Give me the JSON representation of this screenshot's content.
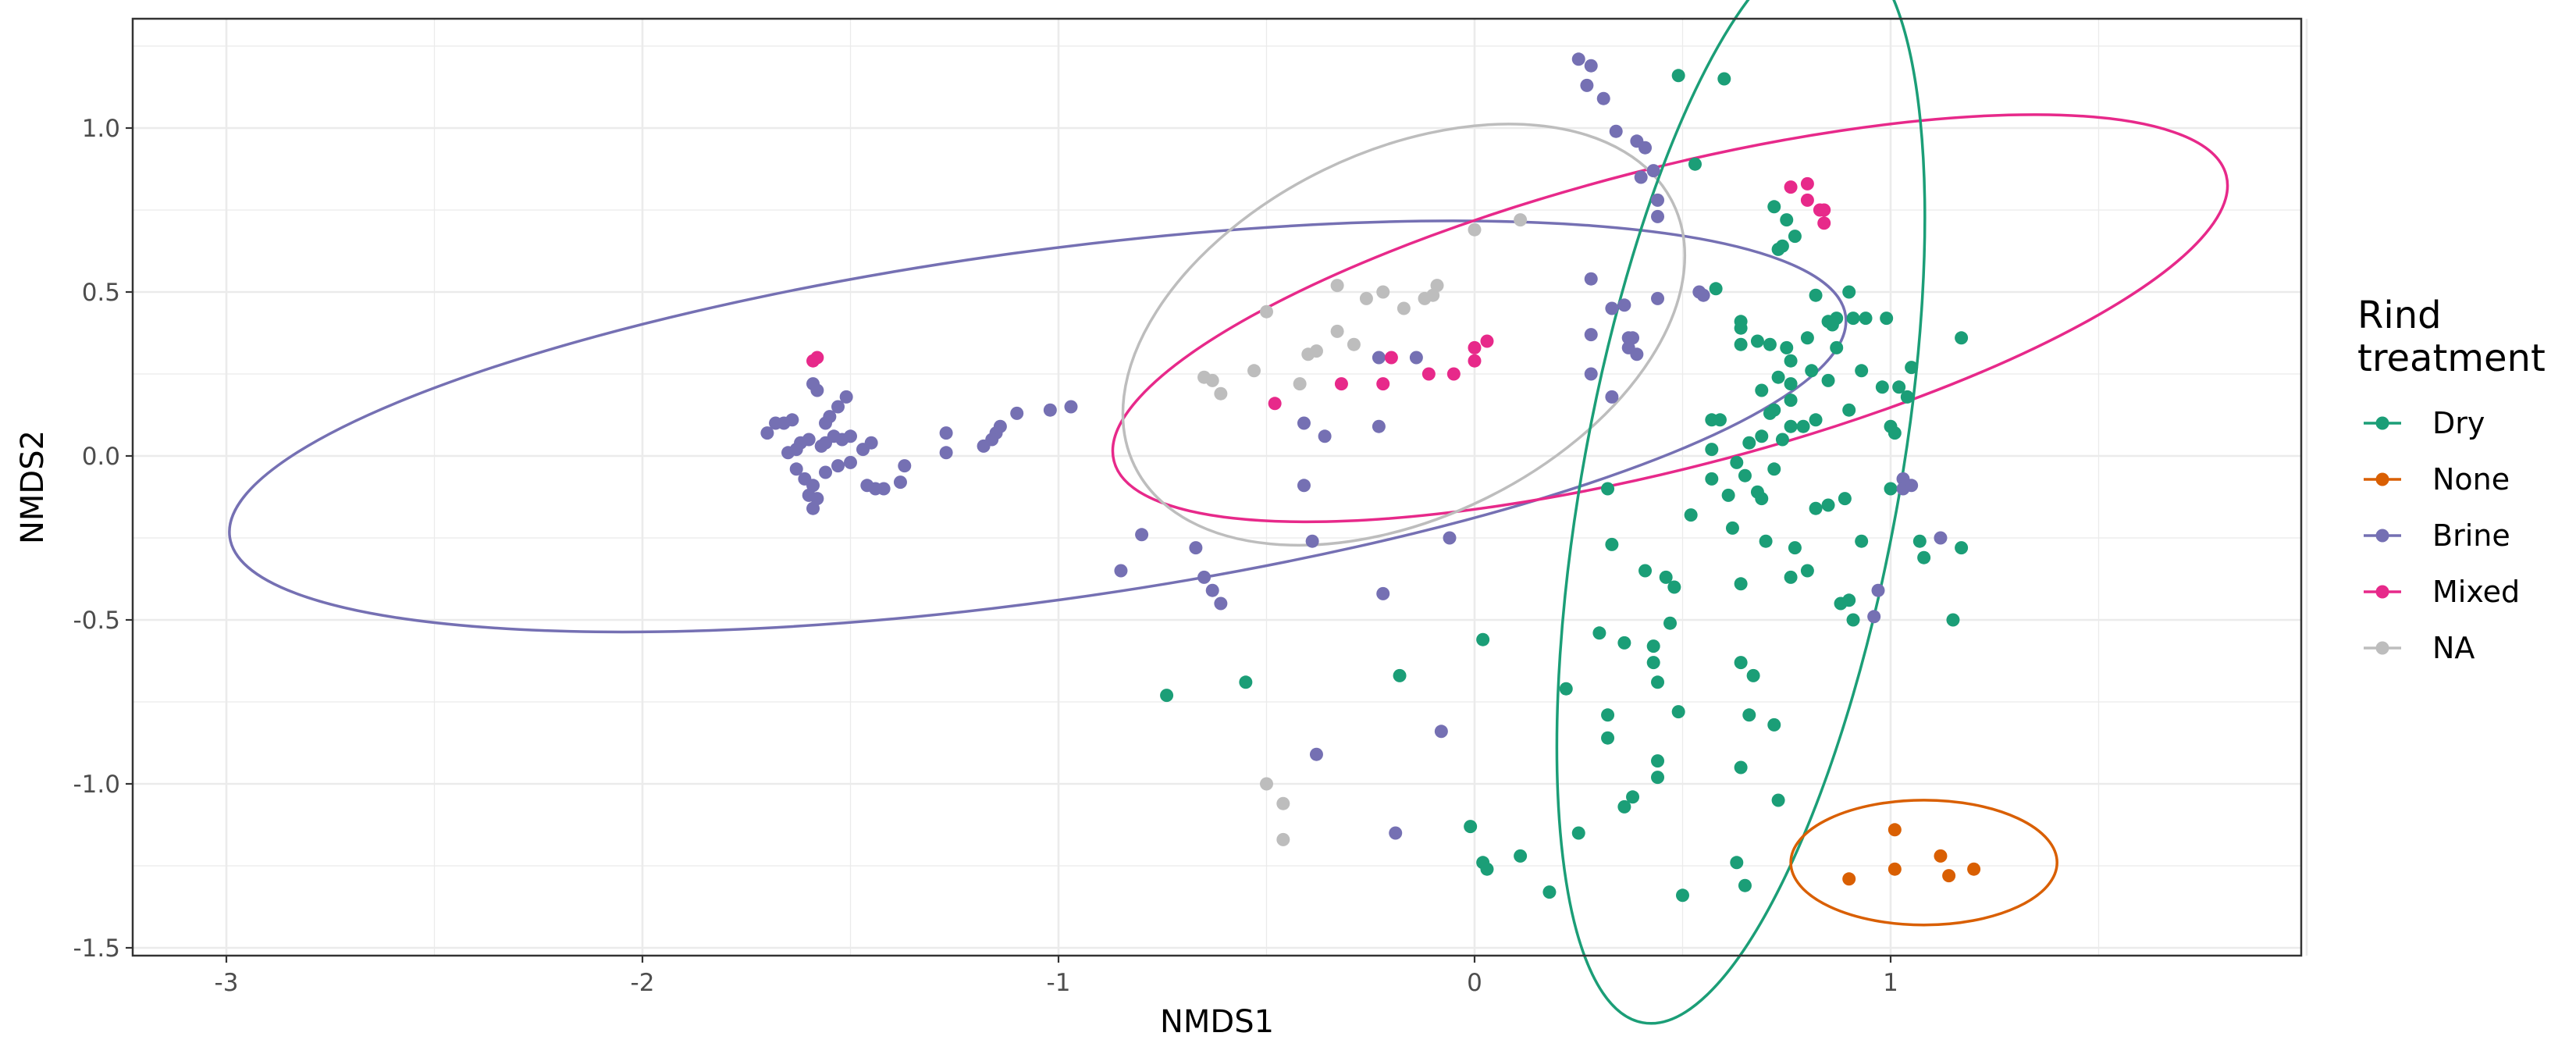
{
  "chart_data": {
    "type": "scatter",
    "title": "",
    "xlabel": "NMDS1",
    "ylabel": "NMDS2",
    "xlim": [
      -3.23,
      2.0
    ],
    "ylim": [
      -1.52,
      1.34
    ],
    "x_ticks": [
      -3,
      -2,
      -1,
      0,
      1
    ],
    "x_tick_labels": [
      "-3",
      "-2",
      "-1",
      "0",
      "1"
    ],
    "y_ticks": [
      -1.5,
      -1.0,
      -0.5,
      0.0,
      0.5,
      1.0
    ],
    "y_tick_labels": [
      "-1.5",
      "-1.0",
      "-0.5",
      "0.0",
      "0.5",
      "1.0"
    ],
    "grid": true,
    "legend": {
      "title_lines": [
        "Rind",
        "treatment"
      ],
      "placement": "right",
      "entries": [
        {
          "key": "dry",
          "label": "Dry"
        },
        {
          "key": "none",
          "label": "None"
        },
        {
          "key": "brine",
          "label": "Brine"
        },
        {
          "key": "mixed",
          "label": "Mixed"
        },
        {
          "key": "na",
          "label": "NA"
        }
      ]
    },
    "colors": {
      "dry": "#1b9e77",
      "none": "#d95f02",
      "brine": "#7570b3",
      "mixed": "#e7298a",
      "na": "#bdbdbd"
    },
    "ellipses": [
      {
        "series": "brine",
        "center": [
          -1.05,
          0.09
        ],
        "semi_axes": [
          1.96,
          0.42
        ],
        "angle_deg": 7.8
      },
      {
        "series": "mixed",
        "center": [
          0.47,
          0.42
        ],
        "semi_axes": [
          1.38,
          0.36
        ],
        "angle_deg": 14.4
      },
      {
        "series": "na",
        "center": [
          -0.17,
          0.37
        ],
        "semi_axes": [
          0.72,
          0.44
        ],
        "angle_deg": 26
      },
      {
        "series": "dry",
        "center": [
          0.64,
          -0.08
        ],
        "semi_axes": [
          1.32,
          0.38
        ],
        "angle_deg": 79.7
      },
      {
        "series": "none",
        "center": [
          1.08,
          -1.24
        ],
        "semi_axes": [
          0.32,
          0.15
        ],
        "angle_deg": 0
      }
    ],
    "series": [
      {
        "name": "Dry",
        "key": "dry",
        "points": [
          [
            0.49,
            1.16
          ],
          [
            0.6,
            1.15
          ],
          [
            0.53,
            0.89
          ],
          [
            0.72,
            0.76
          ],
          [
            0.75,
            0.72
          ],
          [
            0.77,
            0.67
          ],
          [
            0.74,
            0.64
          ],
          [
            0.73,
            0.63
          ],
          [
            0.58,
            0.51
          ],
          [
            0.64,
            0.41
          ],
          [
            0.64,
            0.39
          ],
          [
            0.64,
            0.34
          ],
          [
            0.68,
            0.35
          ],
          [
            0.71,
            0.34
          ],
          [
            0.75,
            0.33
          ],
          [
            0.8,
            0.36
          ],
          [
            0.85,
            0.41
          ],
          [
            0.86,
            0.4
          ],
          [
            0.91,
            0.42
          ],
          [
            0.82,
            0.49
          ],
          [
            0.87,
            0.42
          ],
          [
            0.9,
            0.5
          ],
          [
            0.94,
            0.42
          ],
          [
            0.99,
            0.42
          ],
          [
            0.98,
            0.21
          ],
          [
            1.02,
            0.21
          ],
          [
            1.05,
            0.27
          ],
          [
            1.17,
            0.36
          ],
          [
            0.87,
            0.33
          ],
          [
            0.93,
            0.26
          ],
          [
            0.76,
            0.29
          ],
          [
            0.76,
            0.22
          ],
          [
            0.73,
            0.24
          ],
          [
            0.76,
            0.17
          ],
          [
            0.71,
            0.13
          ],
          [
            0.69,
            0.2
          ],
          [
            0.81,
            0.26
          ],
          [
            0.82,
            0.11
          ],
          [
            0.85,
            0.23
          ],
          [
            0.9,
            0.14
          ],
          [
            1.04,
            0.18
          ],
          [
            1.0,
            0.09
          ],
          [
            1.01,
            0.07
          ],
          [
            0.57,
            0.11
          ],
          [
            0.59,
            0.11
          ],
          [
            0.57,
            0.02
          ],
          [
            0.66,
            0.04
          ],
          [
            0.69,
            0.06
          ],
          [
            0.74,
            0.05
          ],
          [
            0.79,
            0.09
          ],
          [
            0.76,
            0.09
          ],
          [
            0.72,
            0.14
          ],
          [
            0.63,
            -0.02
          ],
          [
            0.65,
            -0.06
          ],
          [
            0.72,
            -0.04
          ],
          [
            0.57,
            -0.07
          ],
          [
            0.61,
            -0.12
          ],
          [
            0.68,
            -0.11
          ],
          [
            0.69,
            -0.13
          ],
          [
            0.62,
            -0.22
          ],
          [
            0.7,
            -0.26
          ],
          [
            0.77,
            -0.28
          ],
          [
            0.8,
            -0.35
          ],
          [
            0.76,
            -0.37
          ],
          [
            0.85,
            -0.15
          ],
          [
            0.82,
            -0.16
          ],
          [
            0.89,
            -0.13
          ],
          [
            0.93,
            -0.26
          ],
          [
            1.0,
            -0.1
          ],
          [
            1.07,
            -0.26
          ],
          [
            1.08,
            -0.31
          ],
          [
            1.17,
            -0.28
          ],
          [
            1.15,
            -0.5
          ],
          [
            0.9,
            -0.44
          ],
          [
            0.88,
            -0.45
          ],
          [
            0.91,
            -0.5
          ],
          [
            0.64,
            -0.39
          ],
          [
            0.52,
            -0.18
          ],
          [
            0.32,
            -0.1
          ],
          [
            0.33,
            -0.27
          ],
          [
            0.3,
            -0.54
          ],
          [
            0.36,
            -0.57
          ],
          [
            0.43,
            -0.58
          ],
          [
            0.41,
            -0.35
          ],
          [
            0.46,
            -0.37
          ],
          [
            0.48,
            -0.4
          ],
          [
            0.47,
            -0.51
          ],
          [
            0.43,
            -0.63
          ],
          [
            0.44,
            -0.69
          ],
          [
            0.49,
            -0.78
          ],
          [
            0.22,
            -0.71
          ],
          [
            0.32,
            -0.79
          ],
          [
            0.32,
            -0.86
          ],
          [
            0.38,
            -1.04
          ],
          [
            0.36,
            -1.07
          ],
          [
            0.44,
            -0.93
          ],
          [
            0.44,
            -0.98
          ],
          [
            0.64,
            -0.63
          ],
          [
            0.67,
            -0.67
          ],
          [
            0.66,
            -0.79
          ],
          [
            0.72,
            -0.82
          ],
          [
            0.64,
            -0.95
          ],
          [
            0.73,
            -1.05
          ],
          [
            0.25,
            -1.15
          ],
          [
            0.02,
            -0.56
          ],
          [
            -0.18,
            -0.67
          ],
          [
            -0.55,
            -0.69
          ],
          [
            -0.74,
            -0.73
          ],
          [
            -0.01,
            -1.13
          ],
          [
            0.02,
            -1.24
          ],
          [
            0.03,
            -1.26
          ],
          [
            0.11,
            -1.22
          ],
          [
            0.18,
            -1.33
          ],
          [
            0.5,
            -1.34
          ],
          [
            0.63,
            -1.24
          ],
          [
            0.65,
            -1.31
          ]
        ]
      },
      {
        "name": "None",
        "key": "none",
        "points": [
          [
            1.01,
            -1.14
          ],
          [
            1.12,
            -1.22
          ],
          [
            1.01,
            -1.26
          ],
          [
            1.14,
            -1.28
          ],
          [
            1.2,
            -1.26
          ],
          [
            0.9,
            -1.29
          ]
        ]
      },
      {
        "name": "Brine",
        "key": "brine",
        "points": [
          [
            0.25,
            1.21
          ],
          [
            0.27,
            1.13
          ],
          [
            0.28,
            1.19
          ],
          [
            0.31,
            1.09
          ],
          [
            0.34,
            0.99
          ],
          [
            0.39,
            0.96
          ],
          [
            0.41,
            0.94
          ],
          [
            0.4,
            0.85
          ],
          [
            0.43,
            0.87
          ],
          [
            0.44,
            0.78
          ],
          [
            0.44,
            0.73
          ],
          [
            0.55,
            0.49
          ],
          [
            0.54,
            0.5
          ],
          [
            0.28,
            0.54
          ],
          [
            0.33,
            0.45
          ],
          [
            0.36,
            0.46
          ],
          [
            0.44,
            0.48
          ],
          [
            0.28,
            0.37
          ],
          [
            0.37,
            0.36
          ],
          [
            0.38,
            0.36
          ],
          [
            0.37,
            0.33
          ],
          [
            0.39,
            0.31
          ],
          [
            0.28,
            0.25
          ],
          [
            0.33,
            0.18
          ],
          [
            -0.23,
            0.3
          ],
          [
            -0.14,
            0.3
          ],
          [
            -0.23,
            0.09
          ],
          [
            -0.41,
            0.1
          ],
          [
            -0.36,
            0.06
          ],
          [
            -0.41,
            -0.09
          ],
          [
            -0.39,
            -0.26
          ],
          [
            -0.22,
            -0.42
          ],
          [
            -0.06,
            -0.25
          ],
          [
            -0.08,
            -0.84
          ],
          [
            -0.38,
            -0.91
          ],
          [
            -0.19,
            -1.15
          ],
          [
            -0.67,
            -0.28
          ],
          [
            -0.65,
            -0.37
          ],
          [
            -0.63,
            -0.41
          ],
          [
            -0.61,
            -0.45
          ],
          [
            -0.8,
            -0.24
          ],
          [
            -0.85,
            -0.35
          ],
          [
            -0.97,
            0.15
          ],
          [
            -1.02,
            0.14
          ],
          [
            -1.1,
            0.13
          ],
          [
            -1.14,
            0.09
          ],
          [
            -1.15,
            0.07
          ],
          [
            -1.16,
            0.05
          ],
          [
            -1.18,
            0.03
          ],
          [
            -1.27,
            0.07
          ],
          [
            -1.27,
            0.01
          ],
          [
            -1.37,
            -0.03
          ],
          [
            -1.38,
            -0.08
          ],
          [
            -1.42,
            -0.1
          ],
          [
            -1.44,
            -0.1
          ],
          [
            -1.46,
            -0.09
          ],
          [
            -1.51,
            0.18
          ],
          [
            -1.53,
            0.15
          ],
          [
            -1.55,
            0.12
          ],
          [
            -1.56,
            0.1
          ],
          [
            -1.58,
            0.2
          ],
          [
            -1.59,
            0.22
          ],
          [
            -1.5,
            0.06
          ],
          [
            -1.52,
            0.05
          ],
          [
            -1.54,
            0.06
          ],
          [
            -1.56,
            0.04
          ],
          [
            -1.57,
            0.03
          ],
          [
            -1.6,
            0.05
          ],
          [
            -1.62,
            0.04
          ],
          [
            -1.63,
            0.02
          ],
          [
            -1.65,
            0.01
          ],
          [
            -1.64,
            0.11
          ],
          [
            -1.66,
            0.1
          ],
          [
            -1.68,
            0.1
          ],
          [
            -1.7,
            0.07
          ],
          [
            -1.63,
            -0.04
          ],
          [
            -1.61,
            -0.07
          ],
          [
            -1.59,
            -0.09
          ],
          [
            -1.6,
            -0.12
          ],
          [
            -1.59,
            -0.16
          ],
          [
            -1.5,
            -0.02
          ],
          [
            -1.53,
            -0.03
          ],
          [
            -1.56,
            -0.05
          ],
          [
            -1.47,
            0.02
          ],
          [
            -1.45,
            0.04
          ],
          [
            -1.58,
            -0.13
          ],
          [
            1.03,
            -0.07
          ],
          [
            1.03,
            -0.1
          ],
          [
            1.12,
            -0.25
          ],
          [
            0.97,
            -0.41
          ],
          [
            0.96,
            -0.49
          ],
          [
            1.05,
            -0.09
          ]
        ]
      },
      {
        "name": "Mixed",
        "key": "mixed",
        "points": [
          [
            0.76,
            0.82
          ],
          [
            0.8,
            0.83
          ],
          [
            0.8,
            0.78
          ],
          [
            0.83,
            0.75
          ],
          [
            0.84,
            0.75
          ],
          [
            0.84,
            0.71
          ],
          [
            -1.58,
            0.3
          ],
          [
            -1.59,
            0.29
          ],
          [
            -0.48,
            0.16
          ],
          [
            -0.32,
            0.22
          ],
          [
            -0.22,
            0.22
          ],
          [
            -0.2,
            0.3
          ],
          [
            -0.11,
            0.25
          ],
          [
            -0.05,
            0.25
          ],
          [
            0.0,
            0.29
          ],
          [
            0.0,
            0.33
          ],
          [
            0.03,
            0.35
          ]
        ]
      },
      {
        "name": "NA",
        "key": "na",
        "points": [
          [
            0.0,
            0.69
          ],
          [
            0.11,
            0.72
          ],
          [
            -0.5,
            0.44
          ],
          [
            -0.33,
            0.52
          ],
          [
            -0.26,
            0.48
          ],
          [
            -0.22,
            0.5
          ],
          [
            -0.09,
            0.52
          ],
          [
            -0.1,
            0.49
          ],
          [
            -0.12,
            0.48
          ],
          [
            -0.17,
            0.45
          ],
          [
            -0.33,
            0.38
          ],
          [
            -0.29,
            0.34
          ],
          [
            -0.38,
            0.32
          ],
          [
            -0.4,
            0.31
          ],
          [
            -0.53,
            0.26
          ],
          [
            -0.63,
            0.23
          ],
          [
            -0.65,
            0.24
          ],
          [
            -0.61,
            0.19
          ],
          [
            -0.42,
            0.22
          ],
          [
            -0.5,
            -1.0
          ],
          [
            -0.46,
            -1.06
          ],
          [
            -0.46,
            -1.17
          ]
        ]
      }
    ]
  }
}
